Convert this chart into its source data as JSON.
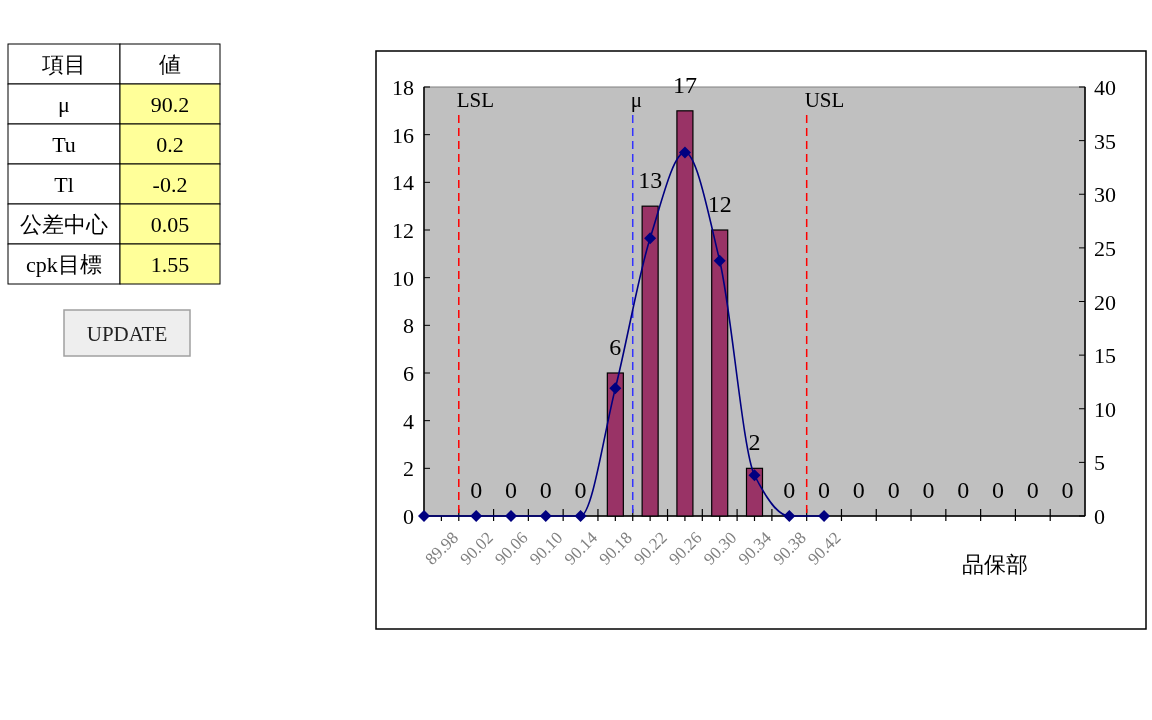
{
  "chart_data": [
    {
      "type": "other",
      "annotations": [
        "項目",
        "値",
        "μ",
        "90.2",
        "Tu",
        "0.2",
        "Tl",
        "-0.2",
        "公差中心",
        "0.05",
        "cpk目標",
        "1.55",
        "UPDATE"
      ]
    },
    {
      "type": "bar",
      "x": [
        90.02,
        90.06,
        90.1,
        90.14,
        90.18,
        90.22,
        90.26,
        90.3,
        90.34,
        90.38,
        90.42,
        90.46,
        90.5,
        90.54,
        90.58,
        90.62,
        90.66,
        90.7
      ],
      "xlim": [
        89.96,
        90.72
      ],
      "xticks": [
        89.98,
        90.02,
        90.06,
        {
          "value": 90.1,
          "label": "90.10"
        },
        90.14,
        90.18,
        90.22,
        90.26,
        {
          "value": 90.3,
          "label": "90.30"
        },
        90.34,
        90.38,
        90.42,
        {
          "value": 90.0,
          "label": null
        },
        {
          "value": 90.04,
          "label": null
        },
        {
          "value": 90.08,
          "label": null
        },
        {
          "value": 90.12,
          "label": null
        },
        {
          "value": 90.16,
          "label": null
        },
        {
          "value": 90.2,
          "label": null
        },
        {
          "value": 90.24,
          "label": null
        },
        {
          "value": 90.28,
          "label": null
        },
        {
          "value": 90.32,
          "label": null
        },
        {
          "value": 90.36,
          "label": null
        },
        {
          "value": 90.4,
          "label": null
        },
        {
          "value": 90.44,
          "label": null
        },
        {
          "value": 90.48,
          "label": null
        },
        {
          "value": 90.52,
          "label": null
        },
        {
          "value": 90.56,
          "label": null
        },
        {
          "value": 90.6,
          "label": null
        },
        {
          "value": 90.64,
          "label": null
        },
        {
          "value": 90.68,
          "label": null
        }
      ],
      "ylim": [
        0,
        18
      ],
      "yticks": [
        0,
        2,
        4,
        6,
        8,
        10,
        12,
        14,
        16,
        18
      ],
      "y2lim": [
        0,
        40
      ],
      "y2ticks": [
        0,
        5,
        10,
        15,
        20,
        25,
        30,
        35,
        40
      ],
      "series": [
        {
          "type": "bar",
          "color": "#993366",
          "values": [
            0,
            0,
            0,
            0,
            6,
            13,
            17,
            12,
            2,
            0,
            0,
            0,
            0,
            0,
            0,
            0,
            0,
            0
          ],
          "value_labels": [
            "0",
            "0",
            "0",
            "0",
            "6",
            "13",
            "17",
            "12",
            "2",
            "0",
            "0",
            "0",
            "0",
            "0",
            "0",
            "0",
            "0",
            "0"
          ]
        },
        {
          "type": "line",
          "axis": "y2",
          "color": "#000080",
          "marker": "diamond",
          "x": [
            89.96,
            90.02,
            90.06,
            90.1,
            90.14,
            90.18,
            90.22,
            90.26,
            90.3,
            90.34,
            90.38,
            90.42
          ],
          "values": [
            0,
            0,
            0,
            0,
            0,
            11.9,
            25.9,
            33.9,
            23.8,
            3.8,
            0,
            0
          ]
        }
      ],
      "ref_lines": [
        {
          "axis": "x",
          "value": 90.0,
          "label": "LSL",
          "color": "#ff0000",
          "line_style": "dashed"
        },
        {
          "axis": "x",
          "value": 90.2,
          "label": "μ",
          "color": "#3333ff",
          "line_style": "dashed"
        },
        {
          "axis": "x",
          "value": 90.4,
          "label": "USL",
          "color": "#ff0000",
          "line_style": "dashed"
        }
      ],
      "annotations": [
        "品保部"
      ]
    }
  ]
}
